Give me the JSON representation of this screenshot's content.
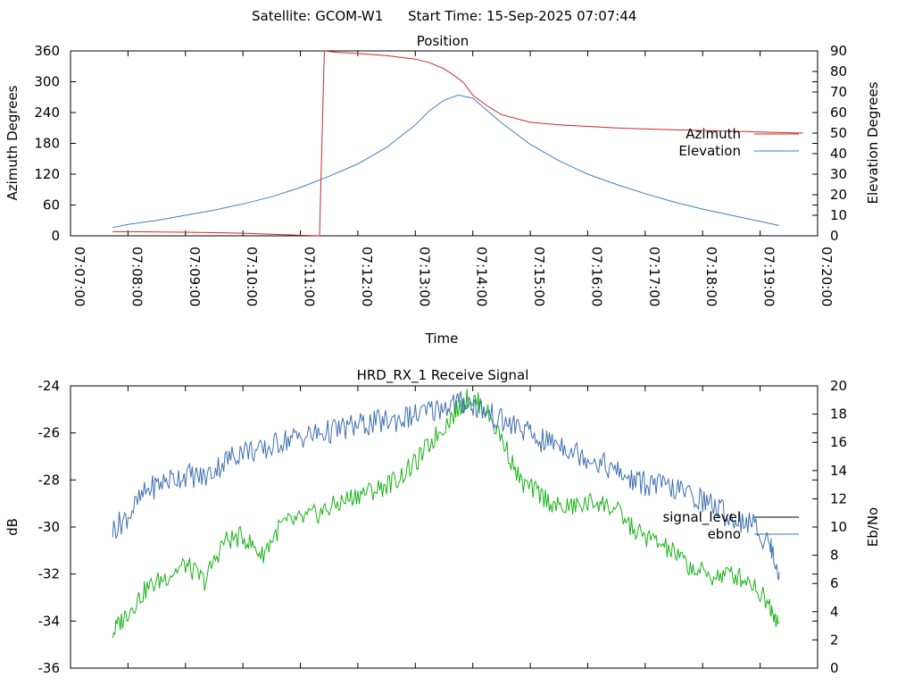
{
  "header": {
    "satellite": "Satellite: GCOM-W1",
    "start_time": "Start Time: 15-Sep-2025 07:07:44"
  },
  "chart_data": [
    {
      "type": "line",
      "title": "Position",
      "xlabel": "Time",
      "ylabel": "Azimuth Degrees",
      "y2label": "Elevation Degrees",
      "xlim": [
        "07:07:00",
        "07:20:00"
      ],
      "xticks": [
        "07:07:00",
        "07:08:00",
        "07:09:00",
        "07:10:00",
        "07:11:00",
        "07:12:00",
        "07:13:00",
        "07:14:00",
        "07:15:00",
        "07:16:00",
        "07:17:00",
        "07:18:00",
        "07:19:00",
        "07:20:00"
      ],
      "ylim": [
        0,
        360
      ],
      "yticks": [
        0,
        60,
        120,
        180,
        240,
        300,
        360
      ],
      "y2lim": [
        0,
        90
      ],
      "y2ticks": [
        0,
        10,
        20,
        30,
        40,
        50,
        60,
        70,
        80,
        90
      ],
      "legend_position": "right",
      "series": [
        {
          "name": "Azimuth",
          "axis": "left",
          "color": "#c8282d",
          "x": [
            "07:07:44",
            "07:08:00",
            "07:09:00",
            "07:10:00",
            "07:10:30",
            "07:11:00",
            "07:11:20",
            "07:11:25",
            "07:11:30",
            "07:11:40",
            "07:12:00",
            "07:12:30",
            "07:13:00",
            "07:13:15",
            "07:13:30",
            "07:13:40",
            "07:13:50",
            "07:14:00",
            "07:14:15",
            "07:14:30",
            "07:15:00",
            "07:15:30",
            "07:16:00",
            "07:16:30",
            "07:17:00",
            "07:18:00",
            "07:19:00",
            "07:19:45"
          ],
          "values": [
            8,
            8,
            7,
            5,
            3,
            1,
            0,
            360,
            359,
            357,
            355,
            351,
            344,
            337,
            325,
            313,
            299,
            274,
            253,
            236,
            221,
            216,
            213,
            210,
            208,
            205,
            202,
            200
          ]
        },
        {
          "name": "Elevation",
          "axis": "right",
          "color": "#3f7fbf",
          "x": [
            "07:07:44",
            "07:08:00",
            "07:08:30",
            "07:09:00",
            "07:09:30",
            "07:10:00",
            "07:10:30",
            "07:11:00",
            "07:11:30",
            "07:12:00",
            "07:12:30",
            "07:13:00",
            "07:13:15",
            "07:13:30",
            "07:13:45",
            "07:14:00",
            "07:14:15",
            "07:14:30",
            "07:15:00",
            "07:15:30",
            "07:16:00",
            "07:16:30",
            "07:17:00",
            "07:17:30",
            "07:18:00",
            "07:18:30",
            "07:19:00",
            "07:19:20"
          ],
          "values": [
            4,
            5.5,
            7.5,
            10,
            12.5,
            15.5,
            19,
            23.5,
            29,
            35,
            43,
            54,
            61,
            66,
            68.5,
            67,
            61,
            55,
            44.5,
            36.5,
            30,
            25,
            20.5,
            16.5,
            13,
            10,
            7,
            5
          ]
        }
      ]
    },
    {
      "type": "line",
      "title": "HRD_RX_1 Receive Signal",
      "xlabel": "",
      "ylabel": "dB",
      "y2label": "Eb/No",
      "xlim": [
        "07:07:00",
        "07:20:00"
      ],
      "ylim": [
        -36,
        -24
      ],
      "yticks": [
        -36,
        -34,
        -32,
        -30,
        -28,
        -26,
        -24
      ],
      "y2lim": [
        0,
        20
      ],
      "y2ticks": [
        0,
        2,
        4,
        6,
        8,
        10,
        12,
        14,
        16,
        18,
        20
      ],
      "legend_position": "right",
      "series": [
        {
          "name": "signal_level",
          "axis": "left",
          "color": "#19b419",
          "x": [
            "07:07:44",
            "07:08:00",
            "07:08:20",
            "07:08:40",
            "07:09:00",
            "07:09:20",
            "07:09:40",
            "07:10:00",
            "07:10:20",
            "07:10:40",
            "07:11:00",
            "07:11:20",
            "07:11:40",
            "07:12:00",
            "07:12:20",
            "07:12:40",
            "07:13:00",
            "07:13:20",
            "07:13:40",
            "07:13:55",
            "07:14:10",
            "07:14:30",
            "07:14:50",
            "07:15:10",
            "07:15:30",
            "07:15:50",
            "07:16:10",
            "07:16:30",
            "07:16:50",
            "07:17:10",
            "07:17:30",
            "07:17:50",
            "07:18:10",
            "07:18:30",
            "07:18:50",
            "07:19:10",
            "07:19:20"
          ],
          "values": [
            -34.5,
            -33.6,
            -32.6,
            -32.1,
            -31.6,
            -32.3,
            -30.6,
            -30.4,
            -31.2,
            -29.9,
            -29.7,
            -29.4,
            -29.0,
            -28.6,
            -28.4,
            -28.0,
            -27.3,
            -26.2,
            -25.2,
            -24.5,
            -24.8,
            -26.2,
            -28.1,
            -28.6,
            -29.2,
            -29.1,
            -28.9,
            -29.3,
            -30.2,
            -30.6,
            -31.1,
            -31.8,
            -32.1,
            -32.0,
            -32.3,
            -33.3,
            -34.1
          ]
        },
        {
          "name": "ebno",
          "axis": "right",
          "color": "#3f70b0",
          "x": [
            "07:07:44",
            "07:08:00",
            "07:08:20",
            "07:08:40",
            "07:09:00",
            "07:09:20",
            "07:09:40",
            "07:10:00",
            "07:10:20",
            "07:10:40",
            "07:11:00",
            "07:11:20",
            "07:11:40",
            "07:12:00",
            "07:12:20",
            "07:12:40",
            "07:13:00",
            "07:13:20",
            "07:13:40",
            "07:13:55",
            "07:14:10",
            "07:14:30",
            "07:14:50",
            "07:15:10",
            "07:15:30",
            "07:15:50",
            "07:16:10",
            "07:16:30",
            "07:16:50",
            "07:17:10",
            "07:17:30",
            "07:17:50",
            "07:18:10",
            "07:18:30",
            "07:18:50",
            "07:19:10",
            "07:19:20"
          ],
          "values": [
            9.8,
            10.8,
            12.6,
            13.3,
            13.7,
            13.5,
            14.6,
            15.5,
            15.3,
            16.1,
            16.4,
            16.6,
            16.9,
            17.2,
            17.4,
            17.6,
            17.9,
            18.3,
            18.8,
            18.8,
            18.3,
            17.5,
            17.0,
            16.1,
            16.0,
            15.2,
            14.7,
            13.9,
            13.2,
            13.0,
            12.7,
            12.2,
            11.6,
            10.6,
            10.3,
            8.8,
            6.8
          ]
        }
      ]
    }
  ]
}
